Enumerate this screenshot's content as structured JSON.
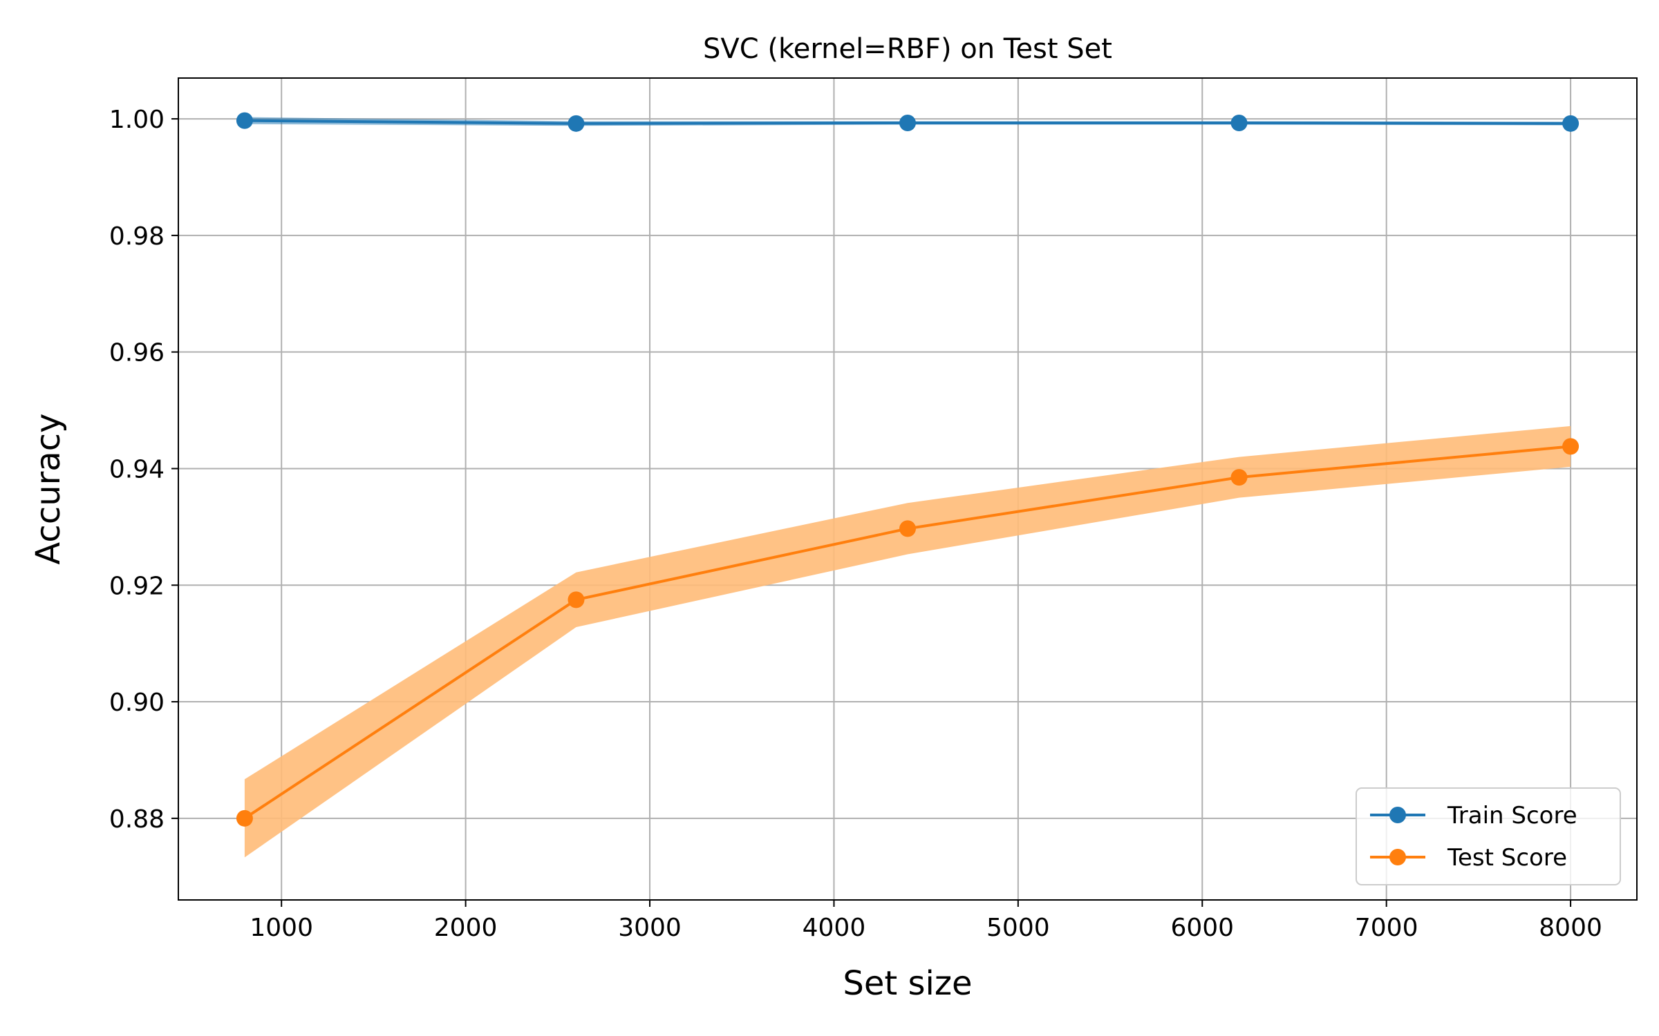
{
  "chart_data": {
    "type": "line",
    "title": "SVC (kernel=RBF) on Test Set",
    "xlabel": "Set size",
    "ylabel": "Accuracy",
    "xlim": [
      440,
      8360
    ],
    "ylim": [
      0.866,
      1.007
    ],
    "x_ticks": [
      1000,
      2000,
      3000,
      4000,
      5000,
      6000,
      7000,
      8000
    ],
    "x_tick_labels": [
      "1000",
      "2000",
      "3000",
      "4000",
      "5000",
      "6000",
      "7000",
      "8000"
    ],
    "y_ticks": [
      0.88,
      0.9,
      0.92,
      0.94,
      0.96,
      0.98,
      1.0
    ],
    "y_tick_labels": [
      "0.88",
      "0.90",
      "0.92",
      "0.94",
      "0.96",
      "0.98",
      "1.00"
    ],
    "grid": true,
    "legend_position": "lower-right",
    "x": [
      800,
      2600,
      4400,
      6200,
      8000
    ],
    "series": [
      {
        "name": "Train Score",
        "color": "#1f77b4",
        "band_color": "#1f77b4",
        "values": [
          0.9997,
          0.9992,
          0.9993,
          0.9993,
          0.9992
        ],
        "band_lower": [
          0.9991,
          0.9988,
          0.999,
          0.999,
          0.9989
        ],
        "band_upper": [
          1.0003,
          0.9996,
          0.9996,
          0.9996,
          0.9995
        ]
      },
      {
        "name": "Test Score",
        "color": "#ff7f0e",
        "band_color": "#ffbb78",
        "values": [
          0.88,
          0.9175,
          0.9297,
          0.9385,
          0.9438
        ],
        "band_lower": [
          0.8733,
          0.9128,
          0.9253,
          0.935,
          0.9403
        ],
        "band_upper": [
          0.8867,
          0.9222,
          0.9341,
          0.942,
          0.9473
        ]
      }
    ]
  }
}
